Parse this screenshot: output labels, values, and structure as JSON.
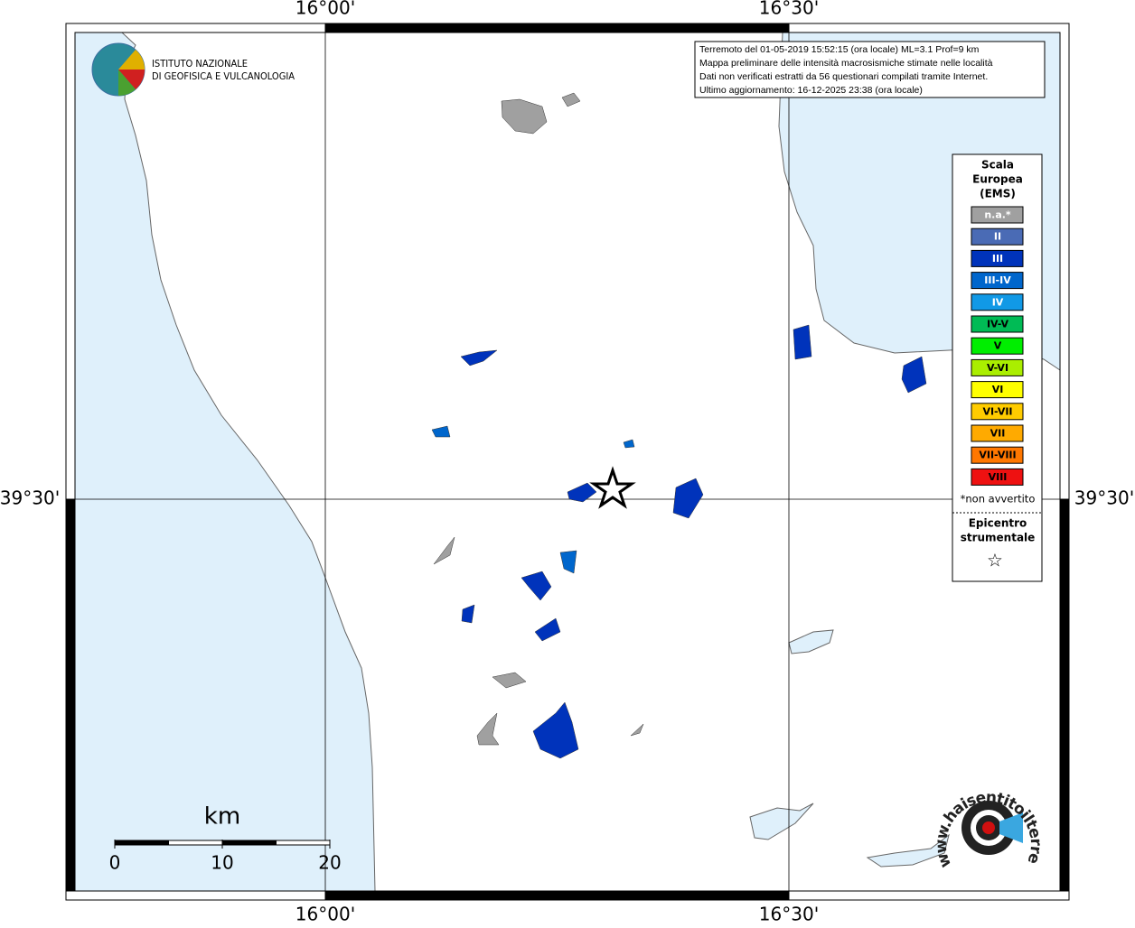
{
  "axes": {
    "top": [
      "16°00'",
      "16°30'"
    ],
    "bottom": [
      "16°00'",
      "16°30'"
    ],
    "left": [
      "39°30'"
    ],
    "right": [
      "39°30'"
    ]
  },
  "logo": {
    "line1": "ISTITUTO NAZIONALE",
    "line2": "DI GEOFISICA E VULCANOLOGIA"
  },
  "info": [
    "Terremoto del 01-05-2019 15:52:15 (ora locale) ML=3.1 Prof=9 km",
    "Mappa preliminare delle intensità macrosismiche stimate nelle località",
    "Dati non verificati estratti da 56 questionari compilati tramite Internet.",
    "Ultimo aggiornamento: 16-12-2025 23:38 (ora locale)"
  ],
  "legend": {
    "title": [
      "Scala",
      "Europea",
      "(EMS)"
    ],
    "entries": [
      {
        "label": "n.a.*",
        "color": "#a0a0a0"
      },
      {
        "label": "II",
        "color": "#4a6bb5"
      },
      {
        "label": "III",
        "color": "#0033bb"
      },
      {
        "label": "III-IV",
        "color": "#0066cc"
      },
      {
        "label": "IV",
        "color": "#1199e6"
      },
      {
        "label": "IV-V",
        "color": "#00bb55"
      },
      {
        "label": "V",
        "color": "#00ee00"
      },
      {
        "label": "V-VI",
        "color": "#aaee00"
      },
      {
        "label": "VI",
        "color": "#ffff00"
      },
      {
        "label": "VI-VII",
        "color": "#ffcc00"
      },
      {
        "label": "VII",
        "color": "#ffaa00"
      },
      {
        "label": "VII-VIII",
        "color": "#ff7700"
      },
      {
        "label": "VIII",
        "color": "#ee1111"
      }
    ],
    "note": "*non avvertito",
    "epicenter": [
      "Epicentro",
      "strumentale"
    ],
    "symbol": "☆"
  },
  "scale": {
    "unit": "km",
    "ticks": [
      0,
      10,
      20
    ]
  },
  "watermark": "www.haisentitoilterremoto.it"
}
